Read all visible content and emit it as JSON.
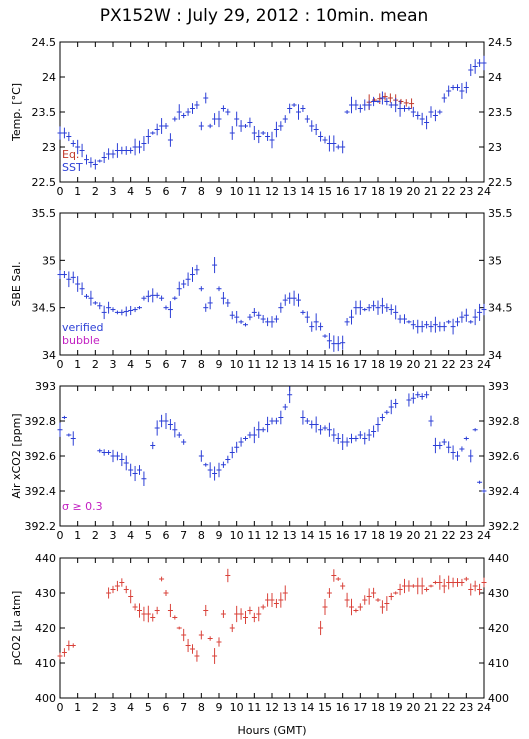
{
  "title": "PX152W : July 29, 2012 : 10min. mean",
  "xlabel": "Hours (GMT)",
  "colors": {
    "eq": "#c0392b",
    "sst": "#2c3fd6",
    "verified": "#2c3fd6",
    "bubble": "#c21fc2",
    "sigma": "#c21fc2",
    "pco2": "#d9423a"
  },
  "chart_data": [
    {
      "type": "scatter",
      "ylabel": "Temp. [°C]",
      "xlim": [
        0,
        24
      ],
      "ylim": [
        22.5,
        24.5
      ],
      "yticks": [
        22.5,
        23,
        23.5,
        24,
        24.5
      ],
      "xticks": [
        0,
        1,
        2,
        3,
        4,
        5,
        6,
        7,
        8,
        9,
        10,
        11,
        12,
        13,
        14,
        15,
        16,
        17,
        18,
        19,
        20,
        21,
        22,
        23,
        24
      ],
      "legend": [
        "Eq.",
        "SST"
      ],
      "legend_placement": "bottom-left",
      "series": [
        {
          "name": "Eq.",
          "x": [
            17.5,
            17.8,
            18.1,
            18.4,
            18.7,
            19.0,
            19.3,
            19.6,
            19.9
          ],
          "y": [
            23.64,
            23.67,
            23.69,
            23.72,
            23.7,
            23.67,
            23.65,
            23.63,
            23.62
          ]
        },
        {
          "name": "SST",
          "x": [
            0.0,
            0.25,
            0.5,
            0.75,
            1.0,
            1.25,
            1.5,
            1.75,
            2.0,
            2.25,
            2.5,
            2.75,
            3.0,
            3.25,
            3.5,
            3.75,
            4.0,
            4.25,
            4.5,
            4.75,
            5.0,
            5.25,
            5.5,
            5.75,
            6.0,
            6.25,
            6.5,
            6.75,
            7.0,
            7.25,
            7.5,
            7.75,
            8.0,
            8.25,
            8.5,
            8.75,
            9.0,
            9.25,
            9.5,
            9.75,
            10.0,
            10.25,
            10.5,
            10.75,
            11.0,
            11.25,
            11.5,
            11.75,
            12.0,
            12.25,
            12.5,
            12.75,
            13.0,
            13.25,
            13.5,
            13.75,
            14.0,
            14.25,
            14.5,
            14.75,
            15.0,
            15.25,
            15.5,
            15.75,
            16.0,
            16.25,
            16.5,
            16.75,
            17.0,
            17.25,
            17.5,
            17.75,
            18.0,
            18.25,
            18.5,
            18.75,
            19.0,
            19.25,
            19.5,
            19.75,
            20.0,
            20.25,
            20.5,
            20.75,
            21.0,
            21.25,
            21.5,
            21.75,
            22.0,
            22.25,
            22.5,
            22.75,
            23.0,
            23.25,
            23.5,
            23.75,
            24.0
          ],
          "y": [
            23.2,
            23.2,
            23.15,
            23.05,
            23.0,
            22.95,
            22.82,
            22.78,
            22.75,
            22.8,
            22.85,
            22.9,
            22.9,
            22.95,
            22.95,
            22.95,
            22.95,
            23.0,
            23.0,
            23.05,
            23.15,
            23.2,
            23.25,
            23.3,
            23.3,
            23.1,
            23.4,
            23.5,
            23.45,
            23.5,
            23.55,
            23.6,
            23.3,
            23.7,
            23.3,
            23.4,
            23.4,
            23.55,
            23.5,
            23.2,
            23.4,
            23.3,
            23.3,
            23.35,
            23.2,
            23.15,
            23.2,
            23.15,
            23.1,
            23.25,
            23.3,
            23.4,
            23.55,
            23.6,
            23.5,
            23.55,
            23.4,
            23.3,
            23.25,
            23.15,
            23.1,
            23.05,
            23.05,
            23.0,
            23.0,
            23.5,
            23.6,
            23.6,
            23.55,
            23.6,
            23.6,
            23.65,
            23.65,
            23.7,
            23.65,
            23.6,
            23.6,
            23.55,
            23.55,
            23.55,
            23.5,
            23.45,
            23.4,
            23.35,
            23.5,
            23.45,
            23.5,
            23.7,
            23.8,
            23.85,
            23.85,
            23.8,
            23.85,
            24.1,
            24.15,
            24.2,
            24.2
          ]
        }
      ]
    },
    {
      "type": "scatter",
      "ylabel": "SBE Sal.",
      "xlim": [
        0,
        24
      ],
      "ylim": [
        34,
        35.5
      ],
      "yticks": [
        34,
        34.5,
        35,
        35.5
      ],
      "xticks": [
        0,
        1,
        2,
        3,
        4,
        5,
        6,
        7,
        8,
        9,
        10,
        11,
        12,
        13,
        14,
        15,
        16,
        17,
        18,
        19,
        20,
        21,
        22,
        23,
        24
      ],
      "legend": [
        "verified",
        "bubble"
      ],
      "legend_placement": "bottom-left",
      "series": [
        {
          "name": "verified",
          "x": [
            0.0,
            0.25,
            0.5,
            0.75,
            1.0,
            1.25,
            1.5,
            1.75,
            2.0,
            2.25,
            2.5,
            2.75,
            3.0,
            3.25,
            3.5,
            3.75,
            4.0,
            4.25,
            4.5,
            4.75,
            5.0,
            5.25,
            5.5,
            5.75,
            6.0,
            6.25,
            6.5,
            6.75,
            7.0,
            7.25,
            7.5,
            7.75,
            8.0,
            8.25,
            8.5,
            8.75,
            9.0,
            9.25,
            9.5,
            9.75,
            10.0,
            10.25,
            10.5,
            10.75,
            11.0,
            11.25,
            11.5,
            11.75,
            12.0,
            12.25,
            12.5,
            12.75,
            13.0,
            13.25,
            13.5,
            13.75,
            14.0,
            14.25,
            14.5,
            14.75,
            15.0,
            15.25,
            15.5,
            15.75,
            16.0,
            16.25,
            16.5,
            16.75,
            17.0,
            17.25,
            17.5,
            17.75,
            18.0,
            18.25,
            18.5,
            18.75,
            19.0,
            19.25,
            19.5,
            19.75,
            20.0,
            20.25,
            20.5,
            20.75,
            21.0,
            21.25,
            21.5,
            21.75,
            22.0,
            22.25,
            22.5,
            22.75,
            23.0,
            23.25,
            23.5,
            23.75,
            24.0
          ],
          "y": [
            34.85,
            34.85,
            34.8,
            34.82,
            34.75,
            34.7,
            34.62,
            34.6,
            34.55,
            34.52,
            34.45,
            34.5,
            34.48,
            34.45,
            34.45,
            34.46,
            34.47,
            34.48,
            34.5,
            34.6,
            34.62,
            34.63,
            34.63,
            34.6,
            34.5,
            34.48,
            34.6,
            34.7,
            34.75,
            34.8,
            34.85,
            34.9,
            34.7,
            34.5,
            34.55,
            34.95,
            34.7,
            34.6,
            34.55,
            34.42,
            34.4,
            34.35,
            34.32,
            34.4,
            34.45,
            34.42,
            34.38,
            34.35,
            34.35,
            34.38,
            34.5,
            34.58,
            34.6,
            34.6,
            34.58,
            34.45,
            34.4,
            34.3,
            34.35,
            34.3,
            34.2,
            34.15,
            34.12,
            34.12,
            34.13,
            34.35,
            34.4,
            34.5,
            34.5,
            34.48,
            34.5,
            34.52,
            34.5,
            34.52,
            34.5,
            34.48,
            34.45,
            34.38,
            34.38,
            34.35,
            34.32,
            34.3,
            34.3,
            34.32,
            34.3,
            34.32,
            34.3,
            34.3,
            34.35,
            34.3,
            34.35,
            34.4,
            34.42,
            34.35,
            34.4,
            34.45,
            34.48
          ]
        },
        {
          "name": "bubble",
          "x": [],
          "y": []
        }
      ]
    },
    {
      "type": "scatter",
      "ylabel": "Air xCO2 [ppm]",
      "xlim": [
        0,
        24
      ],
      "ylim": [
        392.2,
        393
      ],
      "yticks": [
        392.2,
        392.4,
        392.6,
        392.8,
        393
      ],
      "xticks": [
        0,
        1,
        2,
        3,
        4,
        5,
        6,
        7,
        8,
        9,
        10,
        11,
        12,
        13,
        14,
        15,
        16,
        17,
        18,
        19,
        20,
        21,
        22,
        23,
        24
      ],
      "annotation": "σ ≥ 0.3",
      "annotation_placement": "bottom-left",
      "series": [
        {
          "x": [
            0.0,
            0.25,
            0.5,
            0.75,
            2.25,
            2.5,
            2.75,
            3.0,
            3.25,
            3.5,
            3.75,
            4.0,
            4.25,
            4.5,
            4.75,
            5.25,
            5.5,
            5.75,
            6.0,
            6.25,
            6.5,
            6.75,
            7.0,
            8.0,
            8.25,
            8.5,
            8.75,
            9.0,
            9.25,
            9.5,
            9.75,
            10.0,
            10.25,
            10.5,
            10.75,
            11.0,
            11.25,
            11.5,
            11.75,
            12.0,
            12.25,
            12.5,
            12.75,
            13.0,
            13.75,
            14.0,
            14.25,
            14.5,
            14.75,
            15.0,
            15.25,
            15.5,
            15.75,
            16.0,
            16.25,
            16.5,
            16.75,
            17.0,
            17.25,
            17.5,
            17.75,
            18.0,
            18.25,
            18.5,
            18.75,
            19.0,
            19.75,
            20.0,
            20.25,
            20.5,
            20.75,
            21.0,
            21.25,
            21.5,
            21.75,
            22.0,
            22.25,
            22.5,
            22.75,
            23.0,
            23.25,
            23.5,
            23.75,
            24.0
          ],
          "y": [
            392.75,
            392.82,
            392.72,
            392.7,
            392.63,
            392.62,
            392.62,
            392.6,
            392.6,
            392.58,
            392.56,
            392.52,
            392.5,
            392.52,
            392.47,
            392.66,
            392.76,
            392.8,
            392.8,
            392.78,
            392.75,
            392.72,
            392.68,
            392.6,
            392.55,
            392.52,
            392.5,
            392.52,
            392.55,
            392.58,
            392.62,
            392.65,
            392.68,
            392.7,
            392.72,
            392.72,
            392.75,
            392.75,
            392.78,
            392.8,
            392.8,
            392.82,
            392.88,
            392.95,
            392.82,
            392.8,
            392.78,
            392.78,
            392.75,
            392.76,
            392.75,
            392.72,
            392.7,
            392.68,
            392.68,
            392.7,
            392.7,
            392.72,
            392.7,
            392.72,
            392.74,
            392.78,
            392.82,
            392.85,
            392.88,
            392.9,
            392.92,
            392.93,
            392.95,
            392.94,
            392.95,
            392.8,
            392.66,
            392.66,
            392.68,
            392.65,
            392.62,
            392.6,
            392.64,
            392.7,
            392.6,
            392.75,
            392.45,
            392.4
          ]
        }
      ]
    },
    {
      "type": "scatter",
      "ylabel": "pCO2 [μ atm]",
      "xlim": [
        0,
        24
      ],
      "ylim": [
        400,
        440
      ],
      "yticks": [
        400,
        410,
        420,
        430,
        440
      ],
      "xticks": [
        0,
        1,
        2,
        3,
        4,
        5,
        6,
        7,
        8,
        9,
        10,
        11,
        12,
        13,
        14,
        15,
        16,
        17,
        18,
        19,
        20,
        21,
        22,
        23,
        24
      ],
      "series": [
        {
          "x": [
            0.0,
            0.25,
            0.5,
            0.75,
            2.75,
            3.0,
            3.25,
            3.5,
            3.75,
            4.0,
            4.25,
            4.5,
            4.75,
            5.0,
            5.25,
            5.5,
            5.75,
            6.0,
            6.25,
            6.5,
            6.75,
            7.0,
            7.25,
            7.5,
            7.75,
            8.0,
            8.25,
            8.5,
            8.75,
            9.0,
            9.25,
            9.5,
            9.75,
            10.0,
            10.25,
            10.5,
            10.75,
            11.0,
            11.25,
            11.5,
            11.75,
            12.0,
            12.25,
            12.5,
            12.75,
            14.75,
            15.0,
            15.25,
            15.5,
            15.75,
            16.0,
            16.25,
            16.5,
            16.75,
            17.0,
            17.25,
            17.5,
            17.75,
            18.0,
            18.25,
            18.5,
            18.75,
            19.0,
            19.25,
            19.5,
            19.75,
            20.0,
            20.25,
            20.5,
            20.75,
            21.0,
            21.25,
            21.5,
            21.75,
            22.0,
            22.25,
            22.5,
            22.75,
            23.0,
            23.25,
            23.5,
            23.75,
            24.0
          ],
          "y": [
            412,
            413,
            415,
            415,
            430,
            431,
            432,
            433,
            431,
            429,
            426,
            425,
            424,
            424,
            423,
            425,
            434,
            430,
            425,
            423,
            420,
            418,
            415,
            414,
            412,
            418,
            425,
            417,
            412,
            416,
            424,
            435,
            420,
            424,
            424,
            423,
            425,
            423,
            424,
            426,
            428,
            428,
            427,
            428,
            430,
            420,
            426,
            430,
            435,
            434,
            432,
            428,
            426,
            425,
            426,
            428,
            429,
            430,
            428,
            426,
            427,
            429,
            430,
            431,
            432,
            432,
            432,
            432,
            432,
            431,
            432,
            433,
            433,
            432,
            433,
            433,
            433,
            433,
            434,
            431,
            432,
            431,
            433
          ]
        }
      ]
    }
  ]
}
